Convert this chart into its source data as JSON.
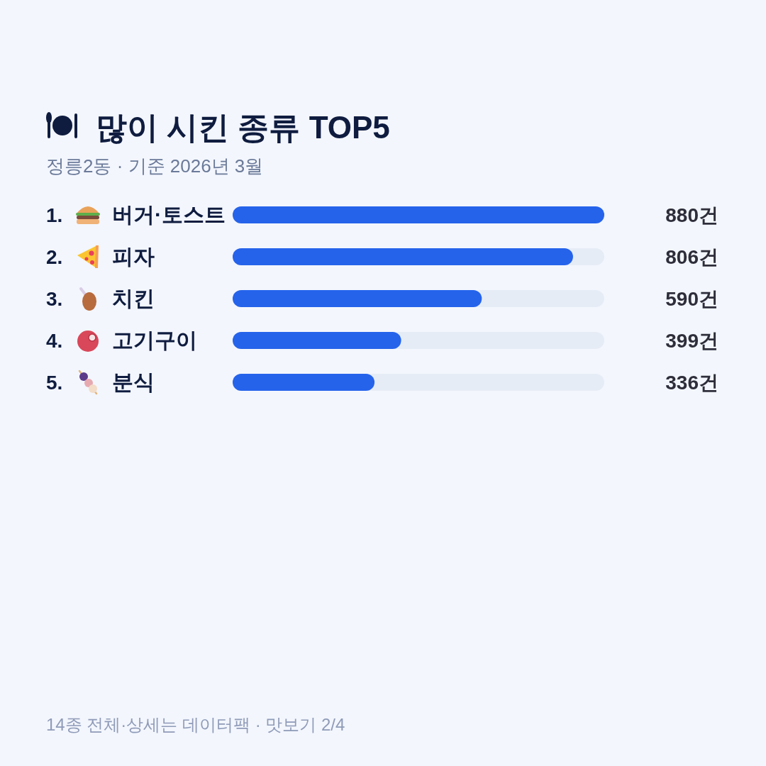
{
  "chart_data": {
    "type": "bar",
    "orientation": "horizontal",
    "title": "많이 시킨 종류 TOP5",
    "subtitle": "정릉2동 · 기준 2026년 3월",
    "categories": [
      "버거·토스트",
      "피자",
      "치킨",
      "고기구이",
      "분식"
    ],
    "values": [
      880,
      806,
      590,
      399,
      336
    ],
    "color": "#2563eb",
    "value_labels": [
      "880건",
      "806건",
      "590건",
      "399건",
      "336건"
    ],
    "bands": [
      {
        "axis": "x",
        "from": 0,
        "to": 880,
        "color": "#e6ecf6"
      }
    ],
    "annotations": [
      "1.",
      "2.",
      "3.",
      "4.",
      "5.",
      "14종 전체·상세는 데이터팩 · 맛보기 2/4"
    ]
  }
}
